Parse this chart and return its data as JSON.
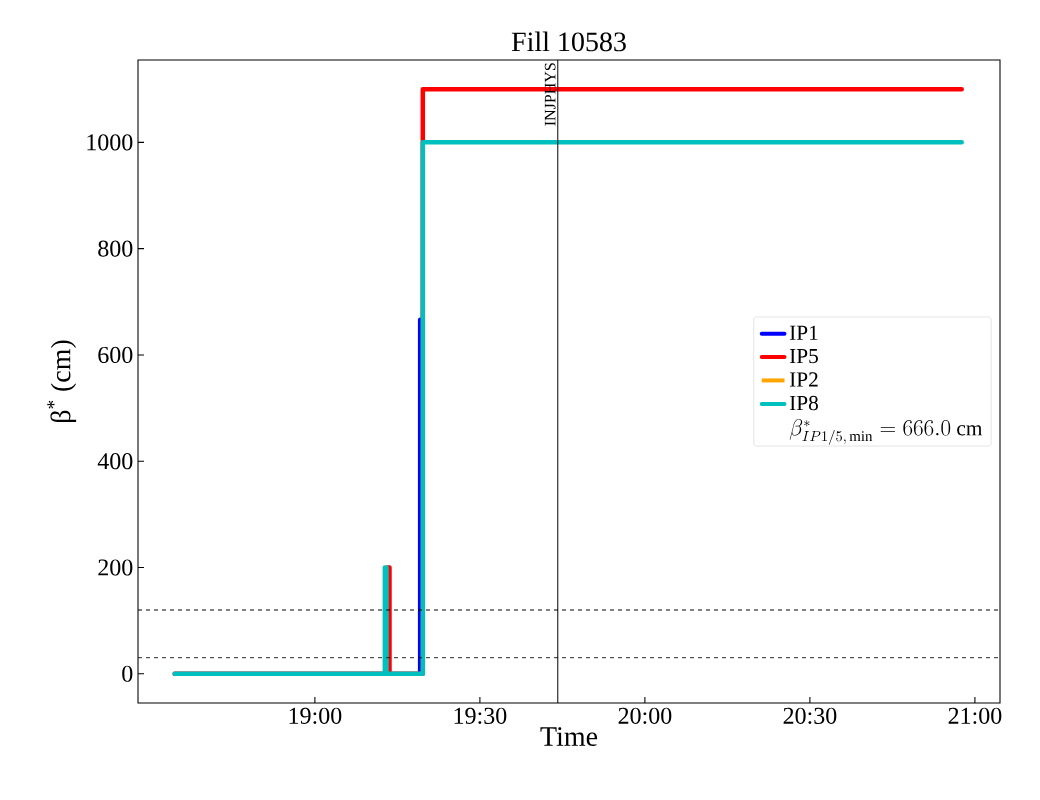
{
  "chart_data": {
    "type": "step",
    "title": "Fill 10583",
    "xlabel": "Time",
    "ylabel": "β$^{*}$ (cm)",
    "xlim": [
      18.464,
      21.076
    ],
    "ylim": [
      -55,
      1155
    ],
    "xticks": [
      {
        "value": 19,
        "label": "19:00"
      },
      {
        "value": 19.5,
        "label": "19:30"
      },
      {
        "value": 20,
        "label": "20:00"
      },
      {
        "value": 20.5,
        "label": "20:30"
      },
      {
        "value": 21,
        "label": "21:00"
      }
    ],
    "yticks": [
      0,
      200,
      400,
      600,
      800,
      1000
    ],
    "series": [
      {
        "name": "IP1",
        "color": "#0000ff",
        "x": [
          19.319,
          19.319
        ],
        "values": [
          0,
          666
        ]
      },
      {
        "name": "IP5",
        "color": "#ff0000",
        "x": [
          18.575,
          19.221,
          19.226,
          19.327,
          20.96
        ],
        "values": [
          0,
          200,
          0,
          1100,
          1100
        ]
      },
      {
        "name": "IP2",
        "color": "#ffa500"
      },
      {
        "name": "IP8",
        "color": "#00bfbf",
        "x": [
          18.575,
          19.212,
          19.217,
          19.327,
          20.96
        ],
        "values": [
          0,
          200,
          0,
          1000,
          1000
        ]
      }
    ],
    "ref_lines": [
      {
        "axis": "y",
        "value": 120,
        "color": "#000000",
        "line_style": "dashed"
      },
      {
        "axis": "y",
        "value": 30,
        "color": "#000000",
        "line_style": "dashed"
      },
      {
        "axis": "x",
        "value": 19.736,
        "color": "#000000",
        "line_style": "solid",
        "label": "INJPHYS"
      }
    ],
    "annotations": [
      "\\beta^{*}_{IP1/5,\\,\\min} = 666.0\\ \\mathrm{cm}"
    ],
    "legend": "right",
    "grid": false,
    "marker": "none",
    "line_style": "solid"
  }
}
